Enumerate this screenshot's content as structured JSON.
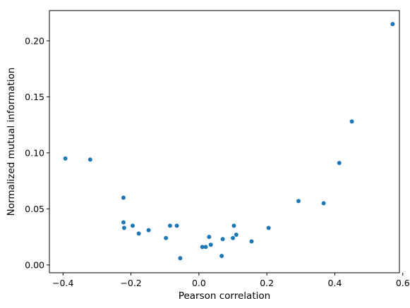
{
  "chart_data": {
    "type": "scatter",
    "title": "",
    "xlabel": "Pearson correlation",
    "ylabel": "Normalized mutual information",
    "xlim": [
      -0.44,
      0.59
    ],
    "ylim": [
      -0.007,
      0.227
    ],
    "xticks": [
      -0.4,
      -0.2,
      0.0,
      0.2,
      0.4,
      0.6
    ],
    "xtick_labels": [
      "−0.4",
      "−0.2",
      "0.0",
      "0.2",
      "0.4",
      "0.6"
    ],
    "yticks": [
      0.0,
      0.05,
      0.1,
      0.15,
      0.2
    ],
    "ytick_labels": [
      "0.00",
      "0.05",
      "0.10",
      "0.15",
      "0.20"
    ],
    "grid": false,
    "color": "#1f77b4",
    "points": [
      {
        "x": -0.393,
        "y": 0.095
      },
      {
        "x": -0.32,
        "y": 0.094
      },
      {
        "x": -0.222,
        "y": 0.06
      },
      {
        "x": -0.222,
        "y": 0.038
      },
      {
        "x": -0.22,
        "y": 0.033
      },
      {
        "x": -0.195,
        "y": 0.035
      },
      {
        "x": -0.177,
        "y": 0.028
      },
      {
        "x": -0.148,
        "y": 0.031
      },
      {
        "x": -0.097,
        "y": 0.024
      },
      {
        "x": -0.085,
        "y": 0.035
      },
      {
        "x": -0.065,
        "y": 0.035
      },
      {
        "x": -0.055,
        "y": 0.006
      },
      {
        "x": 0.01,
        "y": 0.016
      },
      {
        "x": 0.02,
        "y": 0.016
      },
      {
        "x": 0.03,
        "y": 0.025
      },
      {
        "x": 0.035,
        "y": 0.018
      },
      {
        "x": 0.067,
        "y": 0.008
      },
      {
        "x": 0.07,
        "y": 0.023
      },
      {
        "x": 0.1,
        "y": 0.024
      },
      {
        "x": 0.103,
        "y": 0.035
      },
      {
        "x": 0.11,
        "y": 0.027
      },
      {
        "x": 0.155,
        "y": 0.021
      },
      {
        "x": 0.205,
        "y": 0.033
      },
      {
        "x": 0.293,
        "y": 0.057
      },
      {
        "x": 0.367,
        "y": 0.055
      },
      {
        "x": 0.413,
        "y": 0.091
      },
      {
        "x": 0.45,
        "y": 0.128
      },
      {
        "x": 0.57,
        "y": 0.215
      }
    ]
  }
}
